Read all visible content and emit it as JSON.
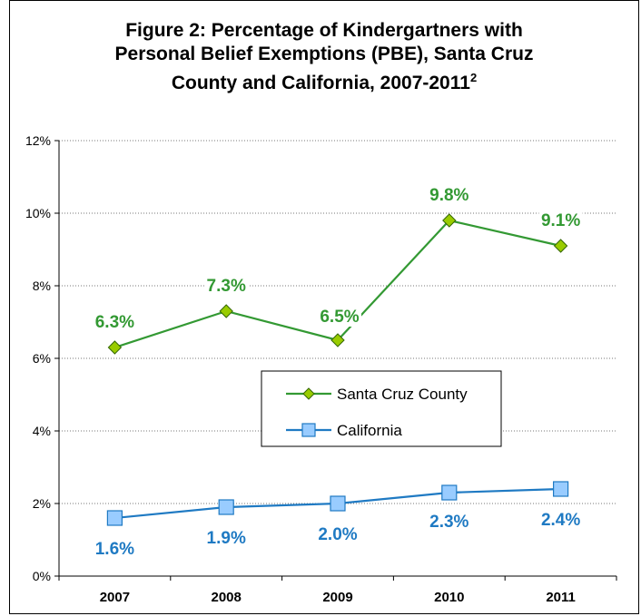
{
  "chart_data": {
    "type": "line",
    "title_line1": "Figure 2:  Percentage of Kindergartners with",
    "title_line2": "Personal Belief Exemptions (PBE), Santa Cruz",
    "title_line3": "County and California, 2007-2011",
    "title_superscript": "2",
    "categories": [
      "2007",
      "2008",
      "2009",
      "2010",
      "2011"
    ],
    "ylim": [
      0,
      12
    ],
    "yticks": [
      0,
      2,
      4,
      6,
      8,
      10,
      12
    ],
    "ytick_labels": [
      "0%",
      "2%",
      "4%",
      "6%",
      "8%",
      "10%",
      "12%"
    ],
    "grid": "horizontal dotted",
    "legend_position": "center-right",
    "series": [
      {
        "name": "Santa Cruz County",
        "values": [
          6.3,
          7.3,
          6.5,
          9.8,
          9.1
        ],
        "labels": [
          "6.3%",
          "7.3%",
          "6.5%",
          "9.8%",
          "9.1%"
        ],
        "color": "#339933",
        "marker_fill": "#99cc00",
        "marker": "diamond"
      },
      {
        "name": "California",
        "values": [
          1.6,
          1.9,
          2.0,
          2.3,
          2.4
        ],
        "labels": [
          "1.6%",
          "1.9%",
          "2.0%",
          "2.3%",
          "2.4%"
        ],
        "color": "#1f7ac3",
        "marker_fill": "#99ccff",
        "marker": "square"
      }
    ]
  }
}
